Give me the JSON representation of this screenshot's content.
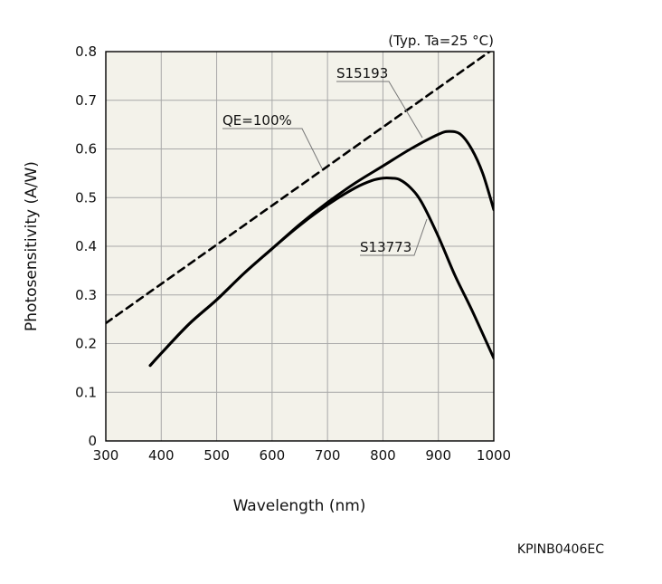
{
  "chart_data": {
    "type": "line",
    "xlabel": "Wavelength (nm)",
    "ylabel": "Photosensitivity (A/W)",
    "condition": "(Typ. Ta=25 °C)",
    "xlim": [
      300,
      1000
    ],
    "ylim": [
      0,
      0.8
    ],
    "x_ticks": [
      "300",
      "400",
      "500",
      "600",
      "700",
      "800",
      "900",
      "1000"
    ],
    "y_ticks": [
      "0",
      "0.1",
      "0.2",
      "0.3",
      "0.4",
      "0.5",
      "0.6",
      "0.7",
      "0.8"
    ],
    "grid": true,
    "series": [
      {
        "name": "S15193",
        "style": "solid",
        "x": [
          380,
          400,
          450,
          500,
          550,
          600,
          650,
          700,
          750,
          800,
          850,
          900,
          920,
          940,
          960,
          980,
          1000
        ],
        "y": [
          0.155,
          0.18,
          0.24,
          0.29,
          0.345,
          0.395,
          0.445,
          0.49,
          0.53,
          0.565,
          0.6,
          0.63,
          0.636,
          0.63,
          0.6,
          0.55,
          0.475
        ]
      },
      {
        "name": "S13773",
        "style": "solid",
        "x": [
          380,
          400,
          450,
          500,
          550,
          600,
          650,
          700,
          750,
          780,
          800,
          815,
          830,
          850,
          870,
          900,
          930,
          960,
          1000
        ],
        "y": [
          0.155,
          0.18,
          0.24,
          0.29,
          0.345,
          0.395,
          0.443,
          0.485,
          0.52,
          0.535,
          0.54,
          0.54,
          0.537,
          0.52,
          0.49,
          0.42,
          0.34,
          0.27,
          0.17
        ]
      },
      {
        "name": "QE=100%",
        "style": "dashed",
        "x": [
          300,
          1000
        ],
        "y": [
          0.242,
          0.806
        ]
      }
    ],
    "annotations": [
      {
        "text": "S15193",
        "target_series": 0
      },
      {
        "text": "S13773",
        "target_series": 1
      },
      {
        "text": "QE=100%",
        "target_series": 2
      }
    ],
    "colors": {
      "background": "#f3f2ea",
      "grid": "#a8a8a8",
      "line": "#000000"
    }
  },
  "figure_code": "KPINB0406EC"
}
